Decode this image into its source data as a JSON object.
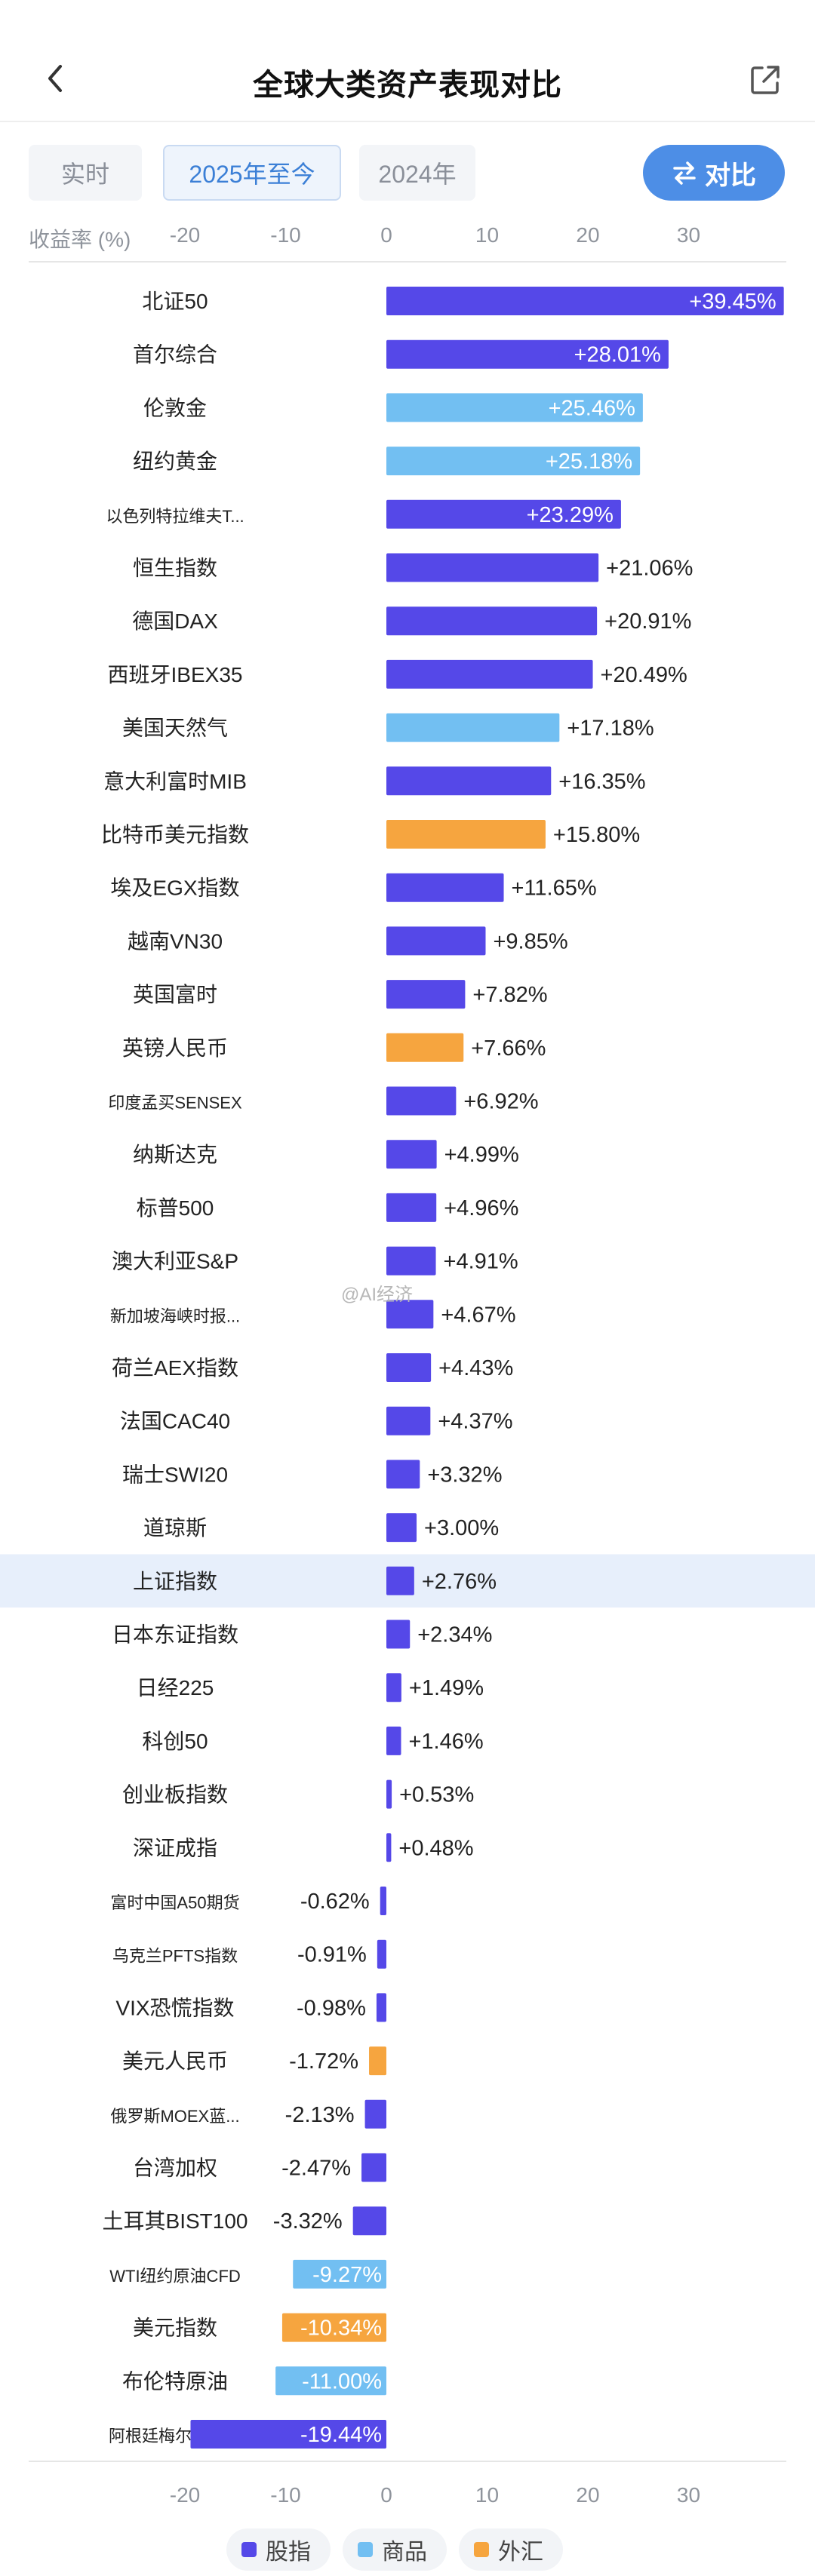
{
  "header": {
    "title": "全球大类资产表现对比"
  },
  "tabs": [
    {
      "label": "实时",
      "active": false
    },
    {
      "label": "2025年至今",
      "active": true
    },
    {
      "label": "2024年",
      "active": false
    }
  ],
  "compare_button": {
    "label": "对比"
  },
  "watermark": "@AI经济",
  "colors": {
    "index": "#5548e8",
    "commodity": "#72bff2",
    "forex": "#f6a53f",
    "highlight_row": "#e7effb"
  },
  "chart_data": {
    "type": "bar",
    "orientation": "horizontal",
    "axis_label": "收益率 (%)",
    "xlim": [
      -20,
      39.5
    ],
    "ticks": [
      -20,
      -10,
      0,
      10,
      20,
      30
    ],
    "grid": false,
    "legend_position": "bottom-center",
    "legend": [
      {
        "name": "股指",
        "type": "index"
      },
      {
        "name": "商品",
        "type": "commodity"
      },
      {
        "name": "外汇",
        "type": "forex"
      }
    ],
    "items": [
      {
        "name": "北证50",
        "value": 39.45,
        "label": "+39.45%",
        "type": "index"
      },
      {
        "name": "首尔综合",
        "value": 28.01,
        "label": "+28.01%",
        "type": "index"
      },
      {
        "name": "伦敦金",
        "value": 25.46,
        "label": "+25.46%",
        "type": "commodity"
      },
      {
        "name": "纽约黄金",
        "value": 25.18,
        "label": "+25.18%",
        "type": "commodity"
      },
      {
        "name": "以色列特拉维夫T...",
        "value": 23.29,
        "label": "+23.29%",
        "type": "index",
        "small": true
      },
      {
        "name": "恒生指数",
        "value": 21.06,
        "label": "+21.06%",
        "type": "index"
      },
      {
        "name": "德国DAX",
        "value": 20.91,
        "label": "+20.91%",
        "type": "index"
      },
      {
        "name": "西班牙IBEX35",
        "value": 20.49,
        "label": "+20.49%",
        "type": "index"
      },
      {
        "name": "美国天然气",
        "value": 17.18,
        "label": "+17.18%",
        "type": "commodity"
      },
      {
        "name": "意大利富时MIB",
        "value": 16.35,
        "label": "+16.35%",
        "type": "index"
      },
      {
        "name": "比特币美元指数",
        "value": 15.8,
        "label": "+15.80%",
        "type": "forex"
      },
      {
        "name": "埃及EGX指数",
        "value": 11.65,
        "label": "+11.65%",
        "type": "index"
      },
      {
        "name": "越南VN30",
        "value": 9.85,
        "label": "+9.85%",
        "type": "index"
      },
      {
        "name": "英国富时",
        "value": 7.82,
        "label": "+7.82%",
        "type": "index"
      },
      {
        "name": "英镑人民币",
        "value": 7.66,
        "label": "+7.66%",
        "type": "forex"
      },
      {
        "name": "印度孟买SENSEX",
        "value": 6.92,
        "label": "+6.92%",
        "type": "index",
        "small": true
      },
      {
        "name": "纳斯达克",
        "value": 4.99,
        "label": "+4.99%",
        "type": "index"
      },
      {
        "name": "标普500",
        "value": 4.96,
        "label": "+4.96%",
        "type": "index"
      },
      {
        "name": "澳大利亚S&P",
        "value": 4.91,
        "label": "+4.91%",
        "type": "index"
      },
      {
        "name": "新加坡海峡时报...",
        "value": 4.67,
        "label": "+4.67%",
        "type": "index",
        "small": true
      },
      {
        "name": "荷兰AEX指数",
        "value": 4.43,
        "label": "+4.43%",
        "type": "index"
      },
      {
        "name": "法国CAC40",
        "value": 4.37,
        "label": "+4.37%",
        "type": "index"
      },
      {
        "name": "瑞士SWI20",
        "value": 3.32,
        "label": "+3.32%",
        "type": "index"
      },
      {
        "name": "道琼斯",
        "value": 3.0,
        "label": "+3.00%",
        "type": "index"
      },
      {
        "name": "上证指数",
        "value": 2.76,
        "label": "+2.76%",
        "type": "index",
        "highlight": true
      },
      {
        "name": "日本东证指数",
        "value": 2.34,
        "label": "+2.34%",
        "type": "index"
      },
      {
        "name": "日经225",
        "value": 1.49,
        "label": "+1.49%",
        "type": "index"
      },
      {
        "name": "科创50",
        "value": 1.46,
        "label": "+1.46%",
        "type": "index"
      },
      {
        "name": "创业板指数",
        "value": 0.53,
        "label": "+0.53%",
        "type": "index"
      },
      {
        "name": "深证成指",
        "value": 0.48,
        "label": "+0.48%",
        "type": "index"
      },
      {
        "name": "富时中国A50期货",
        "value": -0.62,
        "label": "-0.62%",
        "type": "index",
        "small": true
      },
      {
        "name": "乌克兰PFTS指数",
        "value": -0.91,
        "label": "-0.91%",
        "type": "index",
        "small": true
      },
      {
        "name": "VIX恐慌指数",
        "value": -0.98,
        "label": "-0.98%",
        "type": "index"
      },
      {
        "name": "美元人民币",
        "value": -1.72,
        "label": "-1.72%",
        "type": "forex"
      },
      {
        "name": "俄罗斯MOEX蓝...",
        "value": -2.13,
        "label": "-2.13%",
        "type": "index",
        "small": true
      },
      {
        "name": "台湾加权",
        "value": -2.47,
        "label": "-2.47%",
        "type": "index"
      },
      {
        "name": "土耳其BIST100",
        "value": -3.32,
        "label": "-3.32%",
        "type": "index"
      },
      {
        "name": "WTI纽约原油CFD",
        "value": -9.27,
        "label": "-9.27%",
        "type": "commodity",
        "small": true
      },
      {
        "name": "美元指数",
        "value": -10.34,
        "label": "-10.34%",
        "type": "forex"
      },
      {
        "name": "布伦特原油",
        "value": -11.0,
        "label": "-11.00%",
        "type": "commodity"
      },
      {
        "name": "阿根廷梅尔瓦指数",
        "value": -19.44,
        "label": "-19.44%",
        "type": "index",
        "small": true
      }
    ]
  }
}
